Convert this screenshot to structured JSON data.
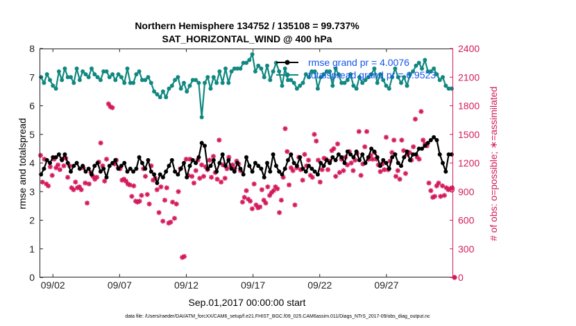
{
  "chart_data": {
    "type": "line",
    "title": [
      "Northern Hemisphere 134752 / 135108 = 99.737%",
      "SAT_HORIZONTAL_WIND @ 400 hPa"
    ],
    "xlabel": "Sep.01,2017 00:00:00 start",
    "ylabel_left": "rmse and totalspread",
    "ylabel_right": "# of obs: o=possible; ∗=assimilated",
    "xlim": [
      0.5,
      31.5
    ],
    "ylim_left": [
      0,
      8
    ],
    "ylim_right": [
      0,
      2400
    ],
    "x_ticks": [
      1.5,
      6.5,
      11.5,
      16.5,
      21.5,
      26.5
    ],
    "x_tick_labels": [
      "09/02",
      "09/07",
      "09/12",
      "09/17",
      "09/22",
      "09/27"
    ],
    "y_ticks_left": [
      0,
      1,
      2,
      3,
      4,
      5,
      6,
      7,
      8
    ],
    "y_ticks_right": [
      0,
      300,
      600,
      900,
      1200,
      1500,
      1800,
      2100,
      2400
    ],
    "legend": [
      {
        "label": "rmse grand pr = 4.0076",
        "color": "#000000"
      },
      {
        "label": "totalspread grand pr = 6.9523",
        "color": "#108880"
      }
    ],
    "colors": {
      "rmse": "#000000",
      "totalspread": "#108880",
      "obs": "#d41a5c"
    },
    "series": [
      {
        "name": "rmse",
        "axis": "left",
        "color": "#000000",
        "values": [
          3.6,
          3.8,
          4.1,
          4.0,
          4.2,
          4.2,
          4.3,
          4.1,
          4.3,
          4.0,
          3.7,
          3.9,
          4.0,
          3.8,
          3.9,
          3.7,
          3.8,
          3.6,
          3.9,
          4.0,
          3.7,
          3.8,
          3.5,
          3.9,
          4.0,
          4.1,
          3.8,
          3.9,
          4.0,
          3.7,
          3.8,
          3.7,
          3.8,
          4.2,
          4.0,
          3.8,
          4.1,
          3.7,
          3.6,
          3.3,
          3.6,
          3.5,
          3.7,
          3.9,
          4.1,
          3.7,
          3.6,
          3.8,
          4.0,
          3.5,
          3.9,
          4.1,
          4.0,
          4.2,
          4.7,
          4.6,
          3.8,
          3.9,
          4.1,
          3.7,
          4.0,
          4.3,
          3.9,
          4.1,
          3.8,
          3.7,
          4.0,
          3.8,
          3.6,
          4.2,
          3.9,
          3.7,
          4.0,
          3.9,
          3.8,
          3.5,
          4.0,
          3.7,
          4.3,
          3.9,
          3.7,
          3.6,
          3.8,
          4.1,
          4.3,
          4.0,
          3.9,
          4.2,
          3.8,
          3.7,
          3.9,
          3.8,
          3.7,
          3.6,
          4.0,
          3.9,
          4.1,
          4.0,
          4.2,
          4.1,
          4.3,
          4.2,
          4.0,
          4.4,
          4.3,
          4.2,
          4.4,
          4.1,
          4.3,
          4.0,
          4.2,
          4.5,
          4.4,
          4.2,
          3.9,
          4.1,
          4.0,
          3.8,
          4.2,
          4.3,
          4.0,
          3.9,
          4.2,
          4.4,
          4.1,
          4.3,
          4.3,
          4.5,
          4.5,
          4.6,
          4.7,
          4.8,
          4.9,
          4.8,
          4.3,
          4.0,
          3.7,
          4.3,
          4.3
        ]
      },
      {
        "name": "totalspread",
        "axis": "left",
        "color": "#108880",
        "values": [
          7.0,
          6.8,
          7.1,
          6.9,
          6.7,
          6.6,
          7.2,
          6.9,
          7.3,
          7.0,
          7.0,
          6.8,
          7.3,
          6.9,
          7.2,
          7.1,
          7.0,
          7.3,
          7.1,
          7.0,
          6.9,
          7.2,
          7.2,
          7.0,
          7.1,
          6.9,
          7.1,
          7.0,
          6.8,
          7.3,
          6.8,
          6.8,
          7.1,
          7.2,
          6.9,
          6.9,
          7.0,
          6.8,
          6.5,
          6.4,
          6.3,
          6.5,
          6.3,
          6.6,
          6.7,
          6.9,
          7.0,
          6.6,
          6.8,
          6.5,
          6.7,
          6.9,
          6.9,
          6.8,
          5.6,
          6.8,
          7.0,
          6.6,
          7.0,
          6.8,
          7.2,
          6.8,
          7.3,
          6.8,
          7.2,
          7.3,
          7.3,
          7.3,
          7.5,
          7.5,
          7.6,
          7.8,
          7.2,
          7.4,
          7.3,
          7.0,
          7.4,
          6.9,
          7.2,
          7.5,
          7.2,
          6.7,
          7.3,
          6.9,
          6.9,
          6.8,
          6.6,
          6.7,
          6.8,
          7.1,
          7.0,
          7.2,
          7.2,
          6.6,
          7.0,
          7.1,
          7.2,
          7.2,
          6.7,
          7.3,
          7.1,
          6.8,
          6.8,
          6.9,
          7.1,
          6.7,
          6.6,
          7.0,
          6.8,
          6.9,
          7.0,
          7.1,
          7.3,
          6.8,
          7.1,
          6.9,
          6.7,
          6.6,
          7.0,
          7.3,
          7.0,
          6.8,
          7.0,
          6.7,
          7.1,
          7.2,
          7.4,
          7.5,
          7.3,
          7.6,
          7.2,
          7.2,
          7.3,
          7.1,
          6.9,
          7.0,
          6.7,
          6.6,
          6.6
        ]
      },
      {
        "name": "obs_assimilated",
        "axis": "right",
        "color": "#d41a5c",
        "values": [
          1280,
          1000,
          1240,
          980,
          960,
          1160,
          1070,
          1240,
          1150,
          1180,
          1130,
          1240,
          1170,
          1250,
          1050,
          1170,
          940,
          920,
          1000,
          940,
          950,
          920,
          1150,
          990,
          780,
          980,
          1100,
          1060,
          1030,
          1050,
          1210,
          1410,
          1170,
          1010,
          1240,
          1820,
          1790,
          1780,
          1190,
          1230,
          1150,
          1140,
          1020,
          1030,
          1010,
          980,
          970,
          850,
          960,
          800,
          790,
          800,
          860,
          1140,
          1060,
          870,
          770,
          1170,
          1020,
          1040,
          920,
          680,
          950,
          590,
          810,
          940,
          570,
          580,
          790,
          620,
          770,
          900,
          1140,
          210,
          220,
          1240,
          1070,
          1240,
          1060,
          990,
          1120,
          1230,
          1040,
          1180,
          1060,
          1160,
          1130,
          1230,
          1050,
          1270,
          1100,
          1030,
          1440,
          1000,
          1180,
          1040,
          1140,
          1260,
          1170,
          1180,
          1140,
          1220,
          1190,
          1120,
          790,
          840,
          910,
          820,
          800,
          720,
          980,
          760,
          730,
          740,
          920,
          810,
          780,
          950,
          860,
          890,
          910,
          950,
          930,
          680,
          810,
          1050,
          1560,
          1320,
          970,
          1150,
          1120,
          760,
          1150,
          1260,
          1130,
          1020,
          1290,
          1170,
          1230,
          1070,
          1050,
          1500,
          1430,
          1230,
          1000,
          1130,
          1250,
          1240,
          1130,
          1220,
          1330,
          1350,
          1060,
          1400,
          1100,
          1240,
          1120,
          1260,
          1180,
          1320,
          1200,
          1120,
          1230,
          1300,
          1530,
          1070,
          1190,
          1370,
          1530,
          1240,
          1280,
          1240,
          1310,
          1240,
          1180,
          1110,
          1190,
          1130,
          1470,
          1130,
          1220,
          1310,
          1440,
          1060,
          1120,
          1030,
          1440,
          1330,
          1090,
          1290,
          1310,
          1230,
          1370,
          1660,
          1260,
          1240,
          1740,
          1440,
          1400,
          1380,
          990,
          910,
          840,
          850,
          960,
          990,
          850,
          960,
          860,
          940,
          920,
          930,
          940
        ]
      }
    ]
  }
}
